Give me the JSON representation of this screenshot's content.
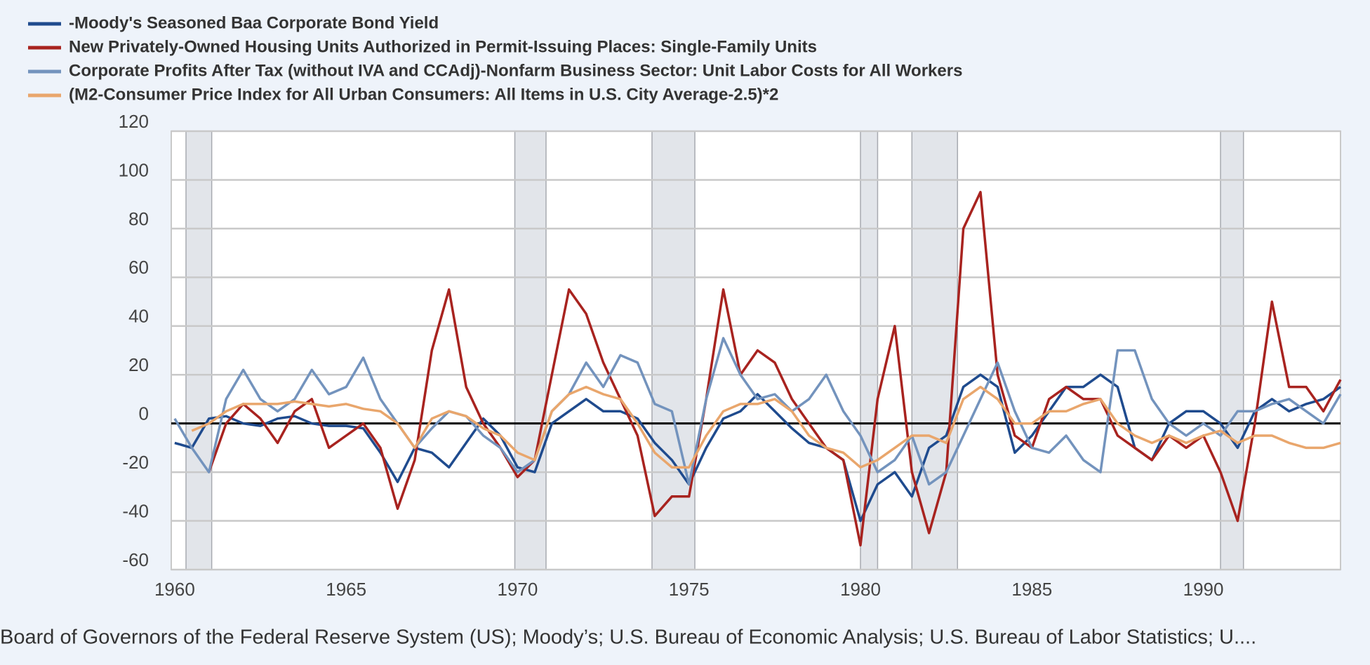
{
  "chart_data": {
    "type": "line",
    "x": [
      1960,
      1960.5,
      1961,
      1961.5,
      1962,
      1962.5,
      1963,
      1963.5,
      1964,
      1964.5,
      1965,
      1965.5,
      1966,
      1966.5,
      1967,
      1967.5,
      1968,
      1968.5,
      1969,
      1969.5,
      1970,
      1970.5,
      1971,
      1971.5,
      1972,
      1972.5,
      1973,
      1973.5,
      1974,
      1974.5,
      1975,
      1975.5,
      1976,
      1976.5,
      1977,
      1977.5,
      1978,
      1978.5,
      1979,
      1979.5,
      1980,
      1980.5,
      1981,
      1981.5,
      1982,
      1982.5,
      1983,
      1983.5,
      1984,
      1984.5,
      1985,
      1985.5,
      1986,
      1986.5,
      1987,
      1987.5,
      1988,
      1988.5,
      1989,
      1989.5,
      1990,
      1990.5,
      1991,
      1991.5,
      1992,
      1992.5,
      1993,
      1993.5,
      1994
    ],
    "series": [
      {
        "name": "-Moody's Seasoned Baa Corporate Bond Yield",
        "color": "#1f4b8e",
        "values": [
          -8,
          -10,
          2,
          3,
          0,
          -1,
          2,
          3,
          0,
          -1,
          -1,
          -2,
          -12,
          -24,
          -10,
          -12,
          -18,
          -8,
          2,
          -5,
          -18,
          -20,
          0,
          5,
          10,
          5,
          5,
          2,
          -8,
          -15,
          -25,
          -10,
          2,
          5,
          12,
          5,
          -2,
          -8,
          -10,
          -15,
          -40,
          -25,
          -20,
          -30,
          -10,
          -5,
          15,
          20,
          15,
          -12,
          -5,
          5,
          15,
          15,
          20,
          15,
          -10,
          -15,
          0,
          5,
          5,
          0,
          -10,
          5,
          10,
          5,
          8,
          10,
          15
        ]
      },
      {
        "name": "New Privately-Owned Housing Units Authorized in Permit-Issuing Places: Single-Family Units",
        "color": "#a8231f",
        "values": [
          null,
          null,
          -20,
          0,
          8,
          2,
          -8,
          5,
          10,
          -10,
          -5,
          0,
          -10,
          -35,
          -15,
          30,
          55,
          15,
          0,
          -10,
          -22,
          -15,
          20,
          55,
          45,
          25,
          10,
          -5,
          -38,
          -30,
          -30,
          10,
          55,
          20,
          30,
          25,
          10,
          0,
          -10,
          -15,
          -50,
          10,
          40,
          -20,
          -45,
          -20,
          80,
          95,
          20,
          -5,
          -10,
          10,
          15,
          10,
          10,
          -5,
          -10,
          -15,
          -5,
          -10,
          -5,
          -20,
          -40,
          0,
          50,
          15,
          15,
          5,
          18
        ]
      },
      {
        "name": "Corporate Profits After Tax (without IVA and CCAdj)-Nonfarm Business Sector: Unit Labor Costs for All Workers",
        "color": "#7393bd",
        "values": [
          2,
          -10,
          -20,
          10,
          22,
          10,
          5,
          10,
          22,
          12,
          15,
          27,
          10,
          0,
          -10,
          -2,
          5,
          3,
          -5,
          -10,
          -20,
          -15,
          5,
          12,
          25,
          15,
          28,
          25,
          8,
          5,
          -25,
          10,
          35,
          20,
          10,
          12,
          5,
          10,
          20,
          5,
          -5,
          -20,
          -15,
          -5,
          -25,
          -20,
          -5,
          10,
          25,
          5,
          -10,
          -12,
          -5,
          -15,
          -20,
          30,
          30,
          10,
          0,
          -5,
          0,
          -5,
          5,
          5,
          8,
          10,
          5,
          0,
          12
        ]
      },
      {
        "name": "(M2-Consumer Price Index for All Urban Consumers: All Items in U.S. City Average-2.5)*2",
        "color": "#e9a66c",
        "values": [
          null,
          -3,
          0,
          5,
          8,
          8,
          8,
          9,
          8,
          7,
          8,
          6,
          5,
          0,
          -10,
          2,
          5,
          3,
          -2,
          -5,
          -12,
          -15,
          5,
          12,
          15,
          12,
          10,
          0,
          -12,
          -18,
          -18,
          -5,
          5,
          8,
          8,
          10,
          5,
          -5,
          -10,
          -12,
          -18,
          -15,
          -10,
          -5,
          -5,
          -8,
          10,
          15,
          10,
          0,
          0,
          5,
          5,
          8,
          10,
          0,
          -5,
          -8,
          -5,
          -8,
          -5,
          -3,
          -8,
          -5,
          -5,
          -8,
          -10,
          -10,
          -8
        ]
      }
    ],
    "xlim": [
      1959.9,
      1994.0
    ],
    "ylim": [
      -60,
      120
    ],
    "xticks": [
      1960,
      1965,
      1970,
      1975,
      1980,
      1985,
      1990
    ],
    "yticks": [
      -60,
      -40,
      -20,
      0,
      20,
      40,
      60,
      80,
      100,
      120
    ],
    "grid": true,
    "recessions": [
      [
        1960.33,
        1961.08
      ],
      [
        1969.92,
        1970.83
      ],
      [
        1973.92,
        1975.17
      ],
      [
        1980.0,
        1980.5
      ],
      [
        1981.5,
        1982.83
      ],
      [
        1990.5,
        1991.17
      ]
    ],
    "source": "Board of Governors of the Federal Reserve System (US); Moody’s; U.S. Bureau of Economic Analysis; U.S. Bureau of Labor Statistics; U...."
  }
}
